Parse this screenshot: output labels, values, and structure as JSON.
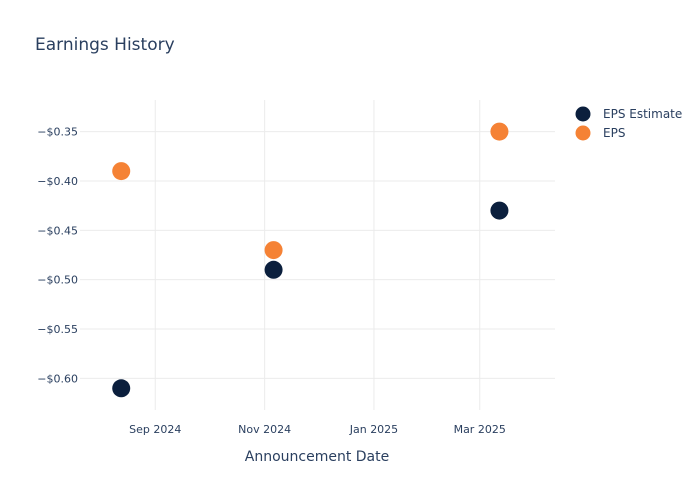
{
  "chart_data": {
    "type": "scatter",
    "title": "Earnings History",
    "xlabel": "Announcement Date",
    "ylabel": "",
    "x_ticks": [
      {
        "date": "2024-09-01",
        "label": "Sep 2024"
      },
      {
        "date": "2024-11-01",
        "label": "Nov 2024"
      },
      {
        "date": "2025-01-01",
        "label": "Jan 2025"
      },
      {
        "date": "2025-03-01",
        "label": "Mar 2025"
      }
    ],
    "y_ticks": [
      {
        "value": -0.35,
        "label": "−$0.35"
      },
      {
        "value": -0.4,
        "label": "−$0.40"
      },
      {
        "value": -0.45,
        "label": "−$0.45"
      },
      {
        "value": -0.5,
        "label": "−$0.50"
      },
      {
        "value": -0.55,
        "label": "−$0.55"
      },
      {
        "value": -0.6,
        "label": "−$0.60"
      }
    ],
    "xlim": [
      "2024-07-21",
      "2025-04-12"
    ],
    "ylim": [
      -0.632,
      -0.318
    ],
    "grid": true,
    "legend_position": "top-right",
    "series": [
      {
        "name": "EPS Estimate",
        "color": "#0b1f3d",
        "points": [
          {
            "x": "2024-08-13",
            "y": -0.61
          },
          {
            "x": "2024-11-06",
            "y": -0.49
          },
          {
            "x": "2025-03-12",
            "y": -0.43
          }
        ]
      },
      {
        "name": "EPS",
        "color": "#f58235",
        "points": [
          {
            "x": "2024-08-13",
            "y": -0.39
          },
          {
            "x": "2024-11-06",
            "y": -0.47
          },
          {
            "x": "2025-03-12",
            "y": -0.35
          }
        ]
      }
    ]
  }
}
